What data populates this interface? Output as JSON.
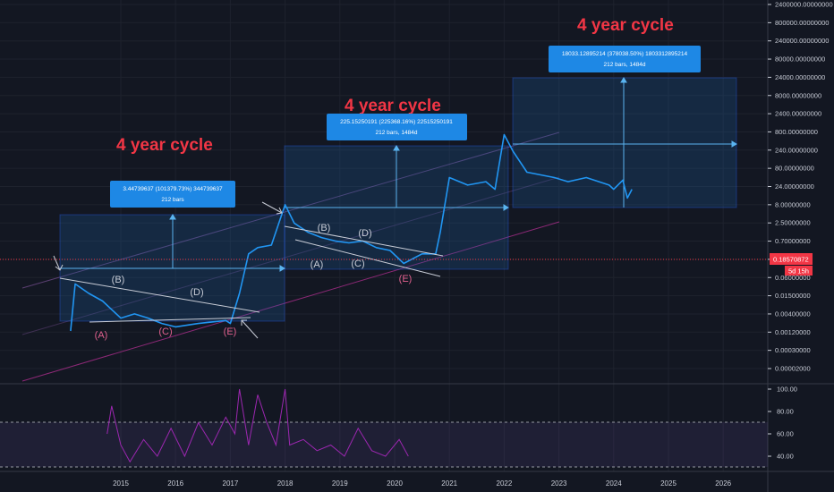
{
  "chart_data": [
    {
      "type": "line",
      "scale": "log",
      "series_color": "#2196f3",
      "y_ticks": [
        "2400000.00000000",
        "800000.00000000",
        "240000.00000000",
        "80000.00000000",
        "24000.00000000",
        "8000.00000000",
        "2400.00000000",
        "800.00000000",
        "240.00000000",
        "80.00000000",
        "24.00000000",
        "8.00000000",
        "2.50000000",
        "0.70000000",
        "0.18570872",
        "0.06000000",
        "0.01500000",
        "0.00400000",
        "0.00120000",
        "0.00030000",
        "0.00002000"
      ],
      "x_ticks": [
        "2015",
        "2016",
        "2017",
        "2018",
        "2019",
        "2020",
        "2021",
        "2022",
        "2023",
        "2024",
        "2025",
        "2026"
      ],
      "price_label": {
        "value": "0.18570872",
        "countdown": "5d 15h",
        "color": "#f23645"
      },
      "x": [
        "2014-02",
        "2014-03",
        "2014-06",
        "2014-09",
        "2015-01",
        "2015-04",
        "2015-07",
        "2015-10",
        "2016-01",
        "2016-06",
        "2016-12",
        "2017-01",
        "2017-03",
        "2017-05",
        "2017-07",
        "2017-10",
        "2018-01",
        "2018-03",
        "2018-06",
        "2018-09",
        "2018-12",
        "2019-03",
        "2019-06",
        "2019-09",
        "2019-12",
        "2020-03",
        "2020-07",
        "2020-10",
        "2020-11",
        "2021-01",
        "2021-05",
        "2021-09",
        "2021-11",
        "2022-01",
        "2022-03",
        "2022-06",
        "2022-12",
        "2023-03",
        "2023-07",
        "2023-12",
        "2024-01",
        "2024-03",
        "2024-04",
        "2024-05"
      ],
      "y": [
        0.004,
        0.05,
        0.03,
        0.02,
        0.008,
        0.01,
        0.008,
        0.006,
        0.005,
        0.006,
        0.007,
        0.006,
        0.03,
        0.25,
        0.35,
        0.4,
        3.5,
        1.3,
        0.8,
        0.6,
        0.5,
        0.45,
        0.5,
        0.35,
        0.3,
        0.15,
        0.25,
        0.25,
        0.8,
        15,
        10,
        12,
        8,
        150,
        60,
        20,
        15,
        12,
        15,
        10,
        8,
        13,
        5,
        8
      ],
      "annotations": [
        {
          "text": "4 year cycle",
          "color": "#f23645"
        },
        {
          "text": "4 year cycle",
          "color": "#f23645"
        },
        {
          "text": "4 year cycle",
          "color": "#f23645"
        }
      ],
      "measure_boxes": [
        {
          "line1": "3.44739637 (101379.73%) 344739637",
          "line2": "212 bars"
        },
        {
          "line1": "225.15250191 (225368.16%) 22515250191",
          "line2": "212 bars, 1484d"
        },
        {
          "line1": "18033.12895214 (378038.50%) 1803312895214",
          "line2": "212 bars, 1484d"
        }
      ],
      "wave_labels": [
        {
          "text": "(A)",
          "color": "#e0608e"
        },
        {
          "text": "(B)",
          "color": "#c8ccd6"
        },
        {
          "text": "(C)",
          "color": "#e0608e"
        },
        {
          "text": "(D)",
          "color": "#c8ccd6"
        },
        {
          "text": "(E)",
          "color": "#e0608e"
        },
        {
          "text": "(B)",
          "color": "#c8ccd6"
        },
        {
          "text": "(A)",
          "color": "#c8ccd6"
        },
        {
          "text": "(D)",
          "color": "#c8ccd6"
        },
        {
          "text": "(C)",
          "color": "#c8ccd6"
        },
        {
          "text": "(E)",
          "color": "#e0608e"
        }
      ]
    },
    {
      "type": "line",
      "indicator": "oscillator",
      "series_color": "#9c27b0",
      "y_ticks": [
        "100.00",
        "80.00",
        "60.00",
        "40.00"
      ],
      "bands": [
        70,
        30
      ],
      "x": [
        "2014-10",
        "2014-11",
        "2015-01",
        "2015-03",
        "2015-06",
        "2015-09",
        "2015-12",
        "2016-03",
        "2016-06",
        "2016-09",
        "2016-12",
        "2017-02",
        "2017-03",
        "2017-05",
        "2017-07",
        "2017-09",
        "2017-11",
        "2018-01",
        "2018-02",
        "2018-05",
        "2018-08",
        "2018-11",
        "2019-02",
        "2019-05",
        "2019-08",
        "2019-11",
        "2020-02",
        "2020-04"
      ],
      "y": [
        60,
        85,
        50,
        35,
        55,
        40,
        65,
        40,
        70,
        50,
        75,
        60,
        100,
        50,
        95,
        70,
        50,
        100,
        50,
        55,
        45,
        50,
        40,
        65,
        45,
        40,
        55,
        40
      ]
    }
  ]
}
